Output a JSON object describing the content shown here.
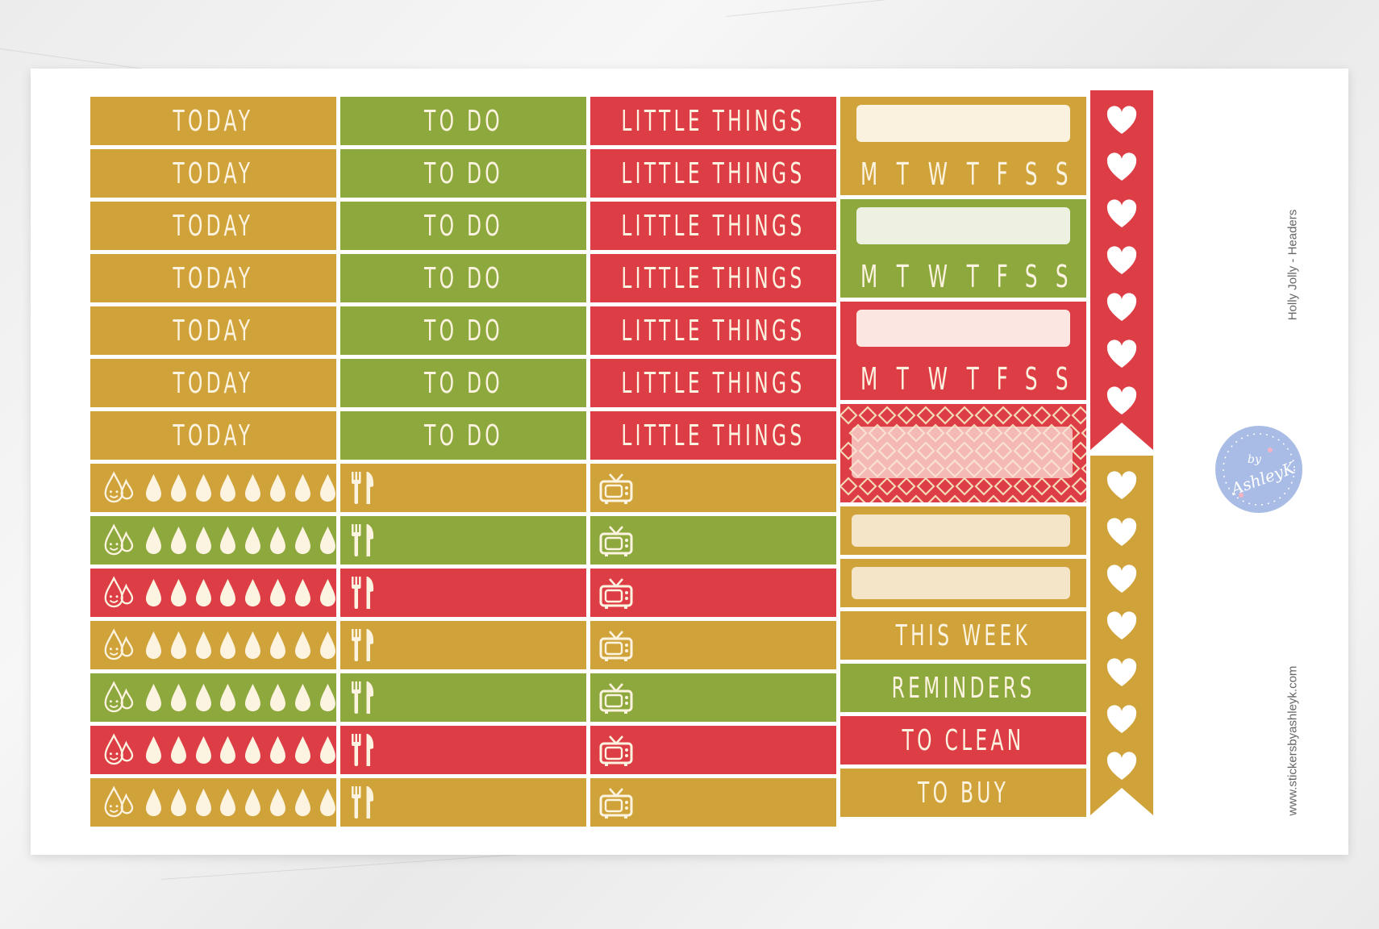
{
  "colors": {
    "gold": "#d0a33a",
    "green": "#8da83d",
    "red": "#dd3d45",
    "cream": "#fdf3e1",
    "logo": "#a9bce6"
  },
  "columns": {
    "today": {
      "label": "TODAY",
      "rows": [
        "gold",
        "gold",
        "gold",
        "gold",
        "gold",
        "gold",
        "gold"
      ]
    },
    "todo": {
      "label": "TO DO",
      "rows": [
        "green",
        "green",
        "green",
        "green",
        "green",
        "green",
        "green"
      ]
    },
    "little": {
      "label": "LITTLE THINGS",
      "rows": [
        "red",
        "red",
        "red",
        "red",
        "red",
        "red",
        "red"
      ]
    }
  },
  "tracker_rows": [
    "gold",
    "green",
    "red",
    "gold",
    "green",
    "red",
    "gold"
  ],
  "water_drop_count": 8,
  "week_blocks": [
    {
      "color": "gold",
      "days": [
        "M",
        "T",
        "W",
        "T",
        "F",
        "S",
        "S"
      ]
    },
    {
      "color": "green",
      "days": [
        "M",
        "T",
        "W",
        "T",
        "F",
        "S",
        "S"
      ]
    },
    {
      "color": "red",
      "days": [
        "M",
        "T",
        "W",
        "T",
        "F",
        "S",
        "S"
      ]
    }
  ],
  "headers": [
    {
      "label": "THIS WEEK",
      "color": "gold"
    },
    {
      "label": "REMINDERS",
      "color": "green"
    },
    {
      "label": "TO CLEAN",
      "color": "red"
    },
    {
      "label": "TO BUY",
      "color": "gold"
    }
  ],
  "hearts": {
    "red_count": 7,
    "gold_count": 7
  },
  "side_text": {
    "title": "Holly Jolly - Headers",
    "url": "www.stickersbyashleyk.com"
  },
  "logo": {
    "small": "by",
    "name": "AshleyK"
  },
  "icons": {
    "water": "water-drop-icon",
    "meal": "fork-knife-icon",
    "tv": "tv-icon",
    "heart": "heart-icon"
  }
}
